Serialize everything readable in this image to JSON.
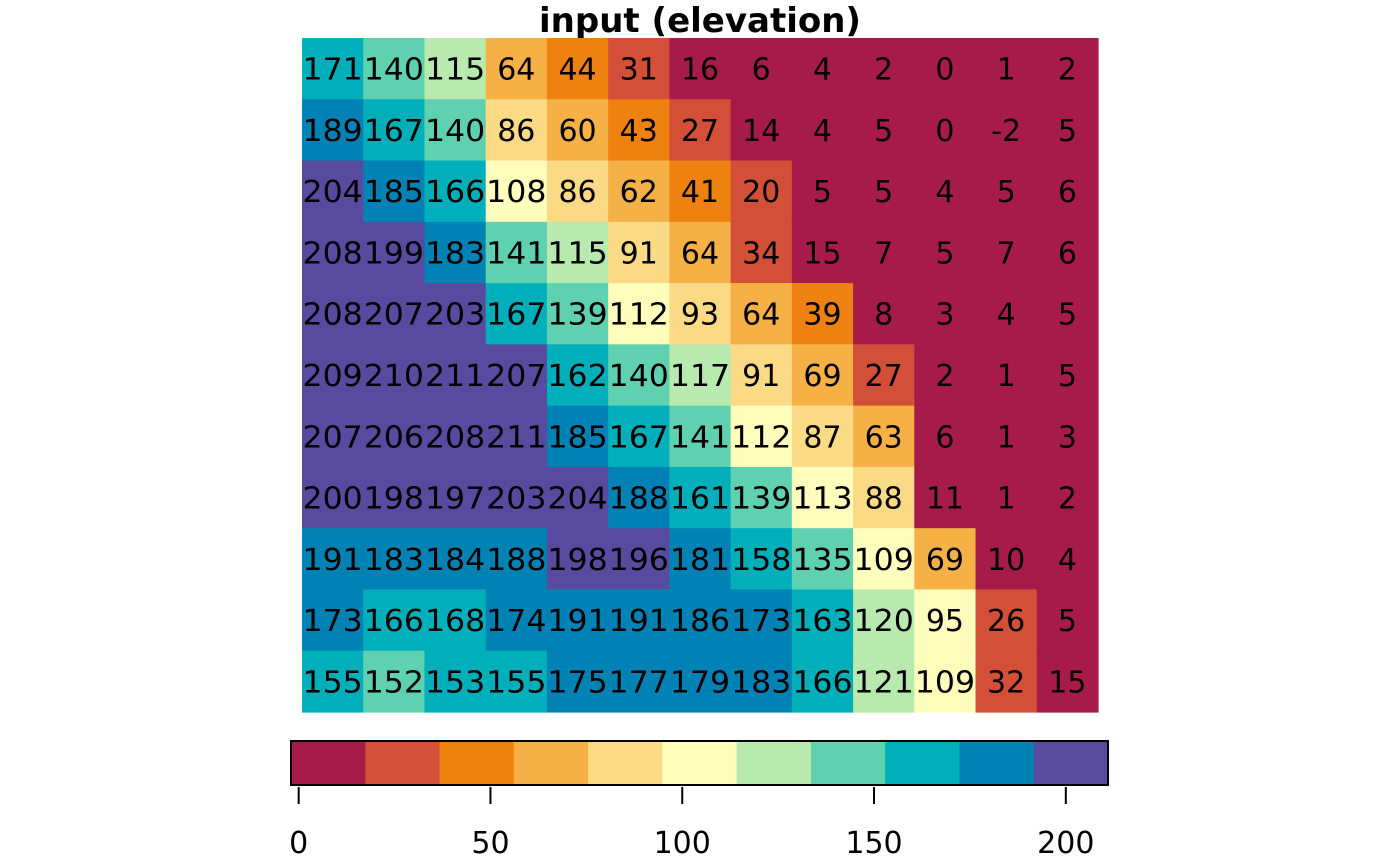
{
  "chart_data": {
    "type": "heatmap",
    "title": "input (elevation)",
    "rows": 11,
    "cols": 13,
    "values": [
      [
        171,
        140,
        115,
        64,
        44,
        31,
        16,
        6,
        4,
        2,
        0,
        1,
        2
      ],
      [
        189,
        167,
        140,
        86,
        60,
        43,
        27,
        14,
        4,
        5,
        0,
        -2,
        5
      ],
      [
        204,
        185,
        166,
        108,
        86,
        62,
        41,
        20,
        5,
        5,
        4,
        5,
        6
      ],
      [
        208,
        199,
        183,
        141,
        115,
        91,
        64,
        34,
        15,
        7,
        5,
        7,
        6
      ],
      [
        208,
        207,
        203,
        167,
        139,
        112,
        93,
        64,
        39,
        8,
        3,
        4,
        5
      ],
      [
        209,
        210,
        211,
        207,
        162,
        140,
        117,
        91,
        69,
        27,
        2,
        1,
        5
      ],
      [
        207,
        206,
        208,
        211,
        185,
        167,
        141,
        112,
        87,
        63,
        6,
        1,
        3
      ],
      [
        200,
        198,
        197,
        203,
        204,
        188,
        161,
        139,
        113,
        88,
        11,
        1,
        2
      ],
      [
        191,
        183,
        184,
        188,
        198,
        196,
        181,
        158,
        135,
        109,
        69,
        10,
        4
      ],
      [
        173,
        166,
        168,
        174,
        191,
        191,
        186,
        173,
        163,
        120,
        95,
        26,
        5
      ],
      [
        155,
        152,
        153,
        155,
        175,
        177,
        179,
        183,
        166,
        121,
        109,
        32,
        15
      ]
    ],
    "color_scale": {
      "breaks": [
        -2,
        17.36,
        36.73,
        56.09,
        75.45,
        94.82,
        114.18,
        133.55,
        152.91,
        172.27,
        191.64,
        211
      ],
      "colors": [
        "#A71B4B",
        "#D44F37",
        "#EE8210",
        "#F6B146",
        "#FBDA86",
        "#FEFDBC",
        "#B8EAB0",
        "#5FD1B0",
        "#00AFBA",
        "#0082B5",
        "#584B9F"
      ]
    },
    "legend": {
      "position": "bottom",
      "ticks": [
        0,
        50,
        100,
        150,
        200
      ],
      "tick_labels": [
        "0",
        "50",
        "100",
        "150",
        "200"
      ]
    }
  }
}
